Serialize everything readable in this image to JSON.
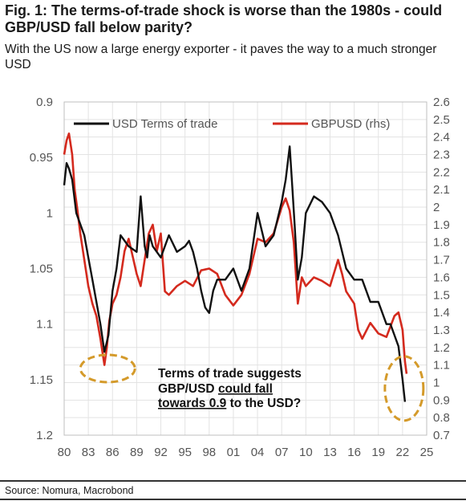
{
  "header": {
    "title": "Fig. 1: The terms-of-trade shock is worse than the 1980s - could GBP/USD fall below parity?",
    "subtitle": "With the US now a large energy exporter - it paves the way to a much stronger USD"
  },
  "footer": {
    "source": "Source: Nomura, Macrobond"
  },
  "colors": {
    "tot": "#111111",
    "gbp": "#d42a1e",
    "circle": "#d49a2a",
    "grid": "#e3e3e3"
  },
  "chart_data": {
    "type": "line",
    "legend_placement": "top",
    "grid": true,
    "x_ticks": [
      "80",
      "83",
      "86",
      "89",
      "92",
      "95",
      "98",
      "01",
      "04",
      "07",
      "10",
      "13",
      "16",
      "19",
      "22",
      "25"
    ],
    "xlim": [
      1980,
      2025
    ],
    "y_left": {
      "ticks": [
        "0.9",
        "0.95",
        "1",
        "1.05",
        "1.1",
        "1.15",
        "1.2"
      ],
      "range": [
        0.9,
        1.2
      ],
      "inverted": true
    },
    "y_right": {
      "ticks": [
        "2.6",
        "2.5",
        "2.4",
        "2.3",
        "2.2",
        "2.1",
        "2",
        "1.9",
        "1.8",
        "1.7",
        "1.6",
        "1.5",
        "1.4",
        "1.3",
        "1.2",
        "1.1",
        "1",
        "0.9",
        "0.8",
        "0.7"
      ],
      "range": [
        0.7,
        2.6
      ]
    },
    "series": [
      {
        "name": "USD Terms of trade",
        "axis": "left",
        "x": [
          1980,
          1980.3,
          1980.6,
          1981,
          1981.5,
          1982,
          1982.5,
          1983,
          1983.5,
          1984,
          1984.5,
          1985,
          1985.5,
          1986,
          1986.5,
          1987,
          1988,
          1989,
          1989.5,
          1990,
          1990.3,
          1990.6,
          1991,
          1992,
          1993,
          1994,
          1995,
          1995.5,
          1996,
          1996.5,
          1997,
          1997.5,
          1998,
          1998.5,
          1999,
          2000,
          2001,
          2002,
          2003,
          2004,
          2005,
          2006,
          2007,
          2007.5,
          2008,
          2008.3,
          2008.6,
          2009,
          2009.5,
          2010,
          2011,
          2012,
          2013,
          2014,
          2015,
          2016,
          2017,
          2018,
          2019,
          2020,
          2020.5,
          2021,
          2021.5,
          2022,
          2022.3
        ],
        "values": [
          0.975,
          0.955,
          0.96,
          0.97,
          1.0,
          1.01,
          1.02,
          1.04,
          1.06,
          1.08,
          1.1,
          1.125,
          1.11,
          1.07,
          1.05,
          1.02,
          1.03,
          1.035,
          0.985,
          1.03,
          1.04,
          1.02,
          1.03,
          1.04,
          1.02,
          1.035,
          1.03,
          1.025,
          1.035,
          1.05,
          1.07,
          1.085,
          1.09,
          1.07,
          1.06,
          1.06,
          1.05,
          1.07,
          1.05,
          1.0,
          1.03,
          1.02,
          0.99,
          0.97,
          0.94,
          0.975,
          1.01,
          1.06,
          1.04,
          1.0,
          0.985,
          0.99,
          1.0,
          1.02,
          1.05,
          1.06,
          1.06,
          1.08,
          1.08,
          1.1,
          1.1,
          1.11,
          1.12,
          1.15,
          1.17
        ]
      },
      {
        "name": "GBPUSD (rhs)",
        "axis": "right",
        "x": [
          1980,
          1980.3,
          1980.6,
          1981,
          1981.3,
          1981.6,
          1982,
          1982.5,
          1983,
          1983.5,
          1984,
          1984.5,
          1985,
          1985.3,
          1985.6,
          1986,
          1986.5,
          1987,
          1987.5,
          1988,
          1988.5,
          1989,
          1989.5,
          1990,
          1990.5,
          1991,
          1991.5,
          1992,
          1992.5,
          1993,
          1994,
          1995,
          1996,
          1997,
          1998,
          1999,
          2000,
          2001,
          2002,
          2003,
          2004,
          2005,
          2006,
          2007,
          2007.5,
          2008,
          2008.5,
          2009,
          2009.5,
          2010,
          2011,
          2012,
          2013,
          2014,
          2014.5,
          2015,
          2016,
          2016.5,
          2017,
          2018,
          2019,
          2020,
          2021,
          2021.5,
          2022,
          2022.3,
          2022.5
        ],
        "values": [
          2.3,
          2.38,
          2.42,
          2.3,
          2.1,
          2.0,
          1.85,
          1.7,
          1.55,
          1.45,
          1.38,
          1.25,
          1.1,
          1.2,
          1.35,
          1.45,
          1.5,
          1.6,
          1.75,
          1.82,
          1.72,
          1.62,
          1.55,
          1.7,
          1.85,
          1.9,
          1.75,
          1.85,
          1.52,
          1.5,
          1.55,
          1.58,
          1.55,
          1.64,
          1.65,
          1.62,
          1.5,
          1.44,
          1.5,
          1.62,
          1.82,
          1.8,
          1.85,
          2.0,
          2.05,
          1.98,
          1.8,
          1.45,
          1.6,
          1.55,
          1.6,
          1.58,
          1.55,
          1.7,
          1.62,
          1.52,
          1.45,
          1.3,
          1.25,
          1.34,
          1.28,
          1.26,
          1.38,
          1.4,
          1.3,
          1.12,
          1.05
        ]
      }
    ],
    "annotation": {
      "line1": "Terms of trade suggests",
      "line2_prefix": "GBP/USD ",
      "line2_underlined": "could fall",
      "line3_underlined": "towards 0.9",
      "line3_suffix": " to the USD?"
    },
    "highlight_circles": [
      {
        "x": 1985,
        "value_left": 1.14
      },
      {
        "x": 2022,
        "value_left": 1.15
      }
    ]
  }
}
